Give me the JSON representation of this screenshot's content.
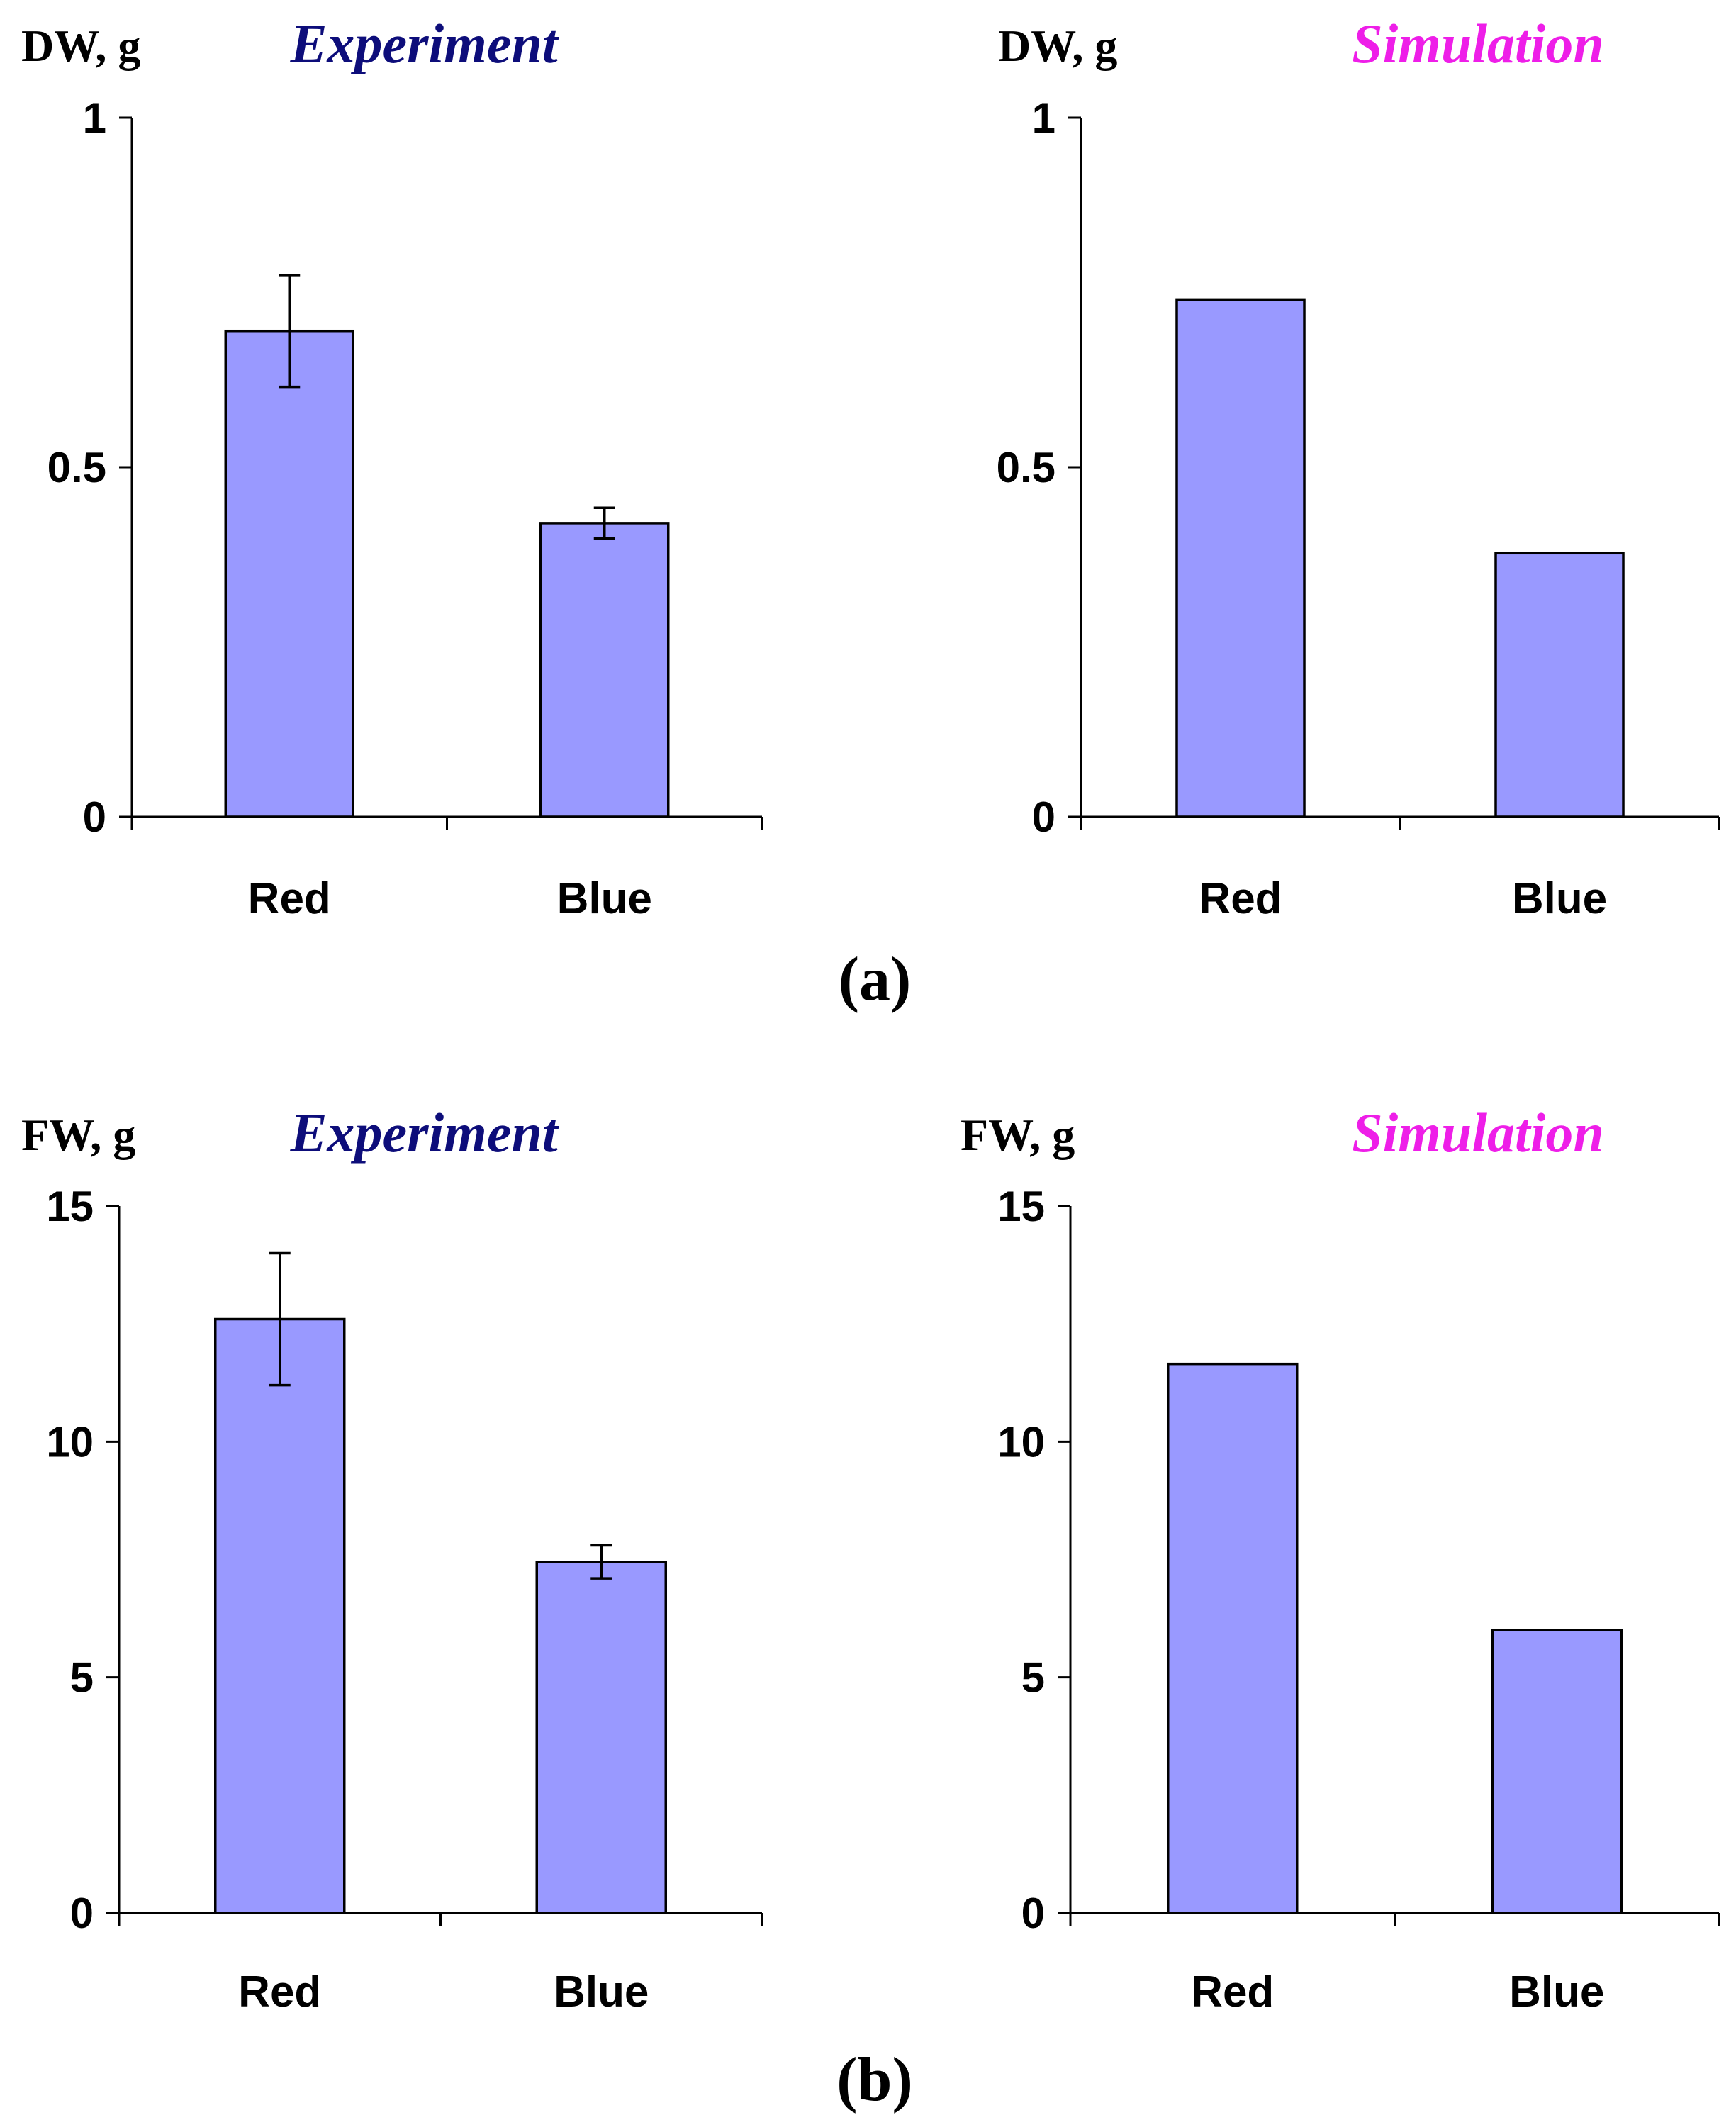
{
  "chart_data": [
    {
      "type": "bar",
      "title": "Experiment",
      "title_color": "#0d0d7a",
      "ylabel": "DW, g",
      "xlabel": "",
      "categories": [
        "Red",
        "Blue"
      ],
      "values": [
        0.695,
        0.42
      ],
      "errors": [
        0.08,
        0.022
      ],
      "ylim": [
        0,
        1
      ],
      "yticks": [
        0,
        0.5,
        1
      ],
      "ytick_labels": [
        "0",
        "0.5",
        "1"
      ],
      "bar_color": "#9999ff"
    },
    {
      "type": "bar",
      "title": "Simulation",
      "title_color": "#ee1ee8",
      "ylabel": "DW, g",
      "xlabel": "",
      "categories": [
        "Red",
        "Blue"
      ],
      "values": [
        0.74,
        0.377
      ],
      "ylim": [
        0,
        1
      ],
      "yticks": [
        0,
        0.5,
        1
      ],
      "ytick_labels": [
        "0",
        "0.5",
        "1"
      ],
      "bar_color": "#9999ff"
    },
    {
      "type": "bar",
      "title": "Experiment",
      "title_color": "#0d0d7a",
      "ylabel": "FW, g",
      "xlabel": "",
      "categories": [
        "Red",
        "Blue"
      ],
      "values": [
        12.6,
        7.45
      ],
      "errors": [
        1.4,
        0.35
      ],
      "ylim": [
        0,
        15
      ],
      "yticks": [
        0,
        5,
        10,
        15
      ],
      "ytick_labels": [
        "0",
        "5",
        "10",
        "15"
      ],
      "bar_color": "#9999ff"
    },
    {
      "type": "bar",
      "title": "Simulation",
      "title_color": "#ee1ee8",
      "ylabel": "FW, g",
      "xlabel": "",
      "categories": [
        "Red",
        "Blue"
      ],
      "values": [
        11.65,
        6.0
      ],
      "ylim": [
        0,
        15
      ],
      "yticks": [
        0,
        5,
        10,
        15
      ],
      "ytick_labels": [
        "0",
        "5",
        "10",
        "15"
      ],
      "bar_color": "#9999ff"
    }
  ],
  "panel_labels": [
    "(a)",
    "(b)"
  ]
}
